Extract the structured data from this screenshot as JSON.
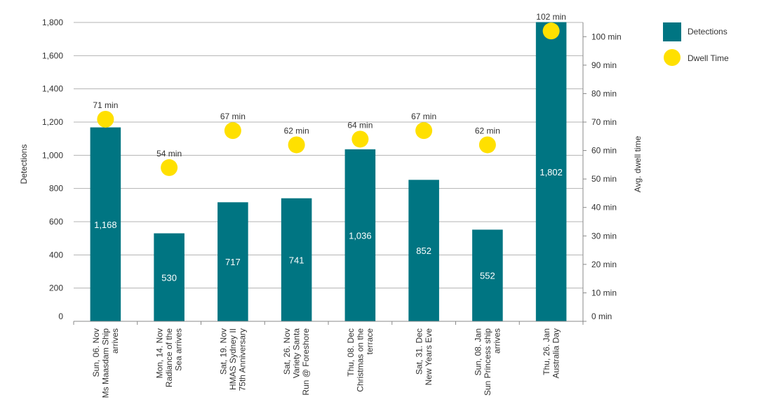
{
  "chart_data": {
    "type": "bar",
    "categories": [
      [
        "Sun, 06. Nov",
        "Ms Maasdam Ship",
        "arrives"
      ],
      [
        "Mon, 14. Nov",
        "Radiance of the",
        "Sea arrives"
      ],
      [
        "Sat, 19. Nov",
        "HMAS Sydney II",
        "75th Anniversary"
      ],
      [
        "Sat, 26. Nov",
        "Variety Santa",
        "Run @ Foreshore"
      ],
      [
        "Thu, 08. Dec",
        "Christmas on the",
        "terrace"
      ],
      [
        "Sat, 31. Dec",
        "New Years Eve"
      ],
      [
        "Sun, 08. Jan",
        "Sun Princess ship",
        "arrives"
      ],
      [
        "Thu, 26. Jan",
        "Australia Day"
      ]
    ],
    "series": [
      {
        "name": "Detections",
        "kind": "bar",
        "axis": "left",
        "color": "#007582",
        "values": [
          1168,
          530,
          717,
          741,
          1036,
          852,
          552,
          1802
        ],
        "labels": [
          "1,168",
          "530",
          "717",
          "741",
          "1,036",
          "852",
          "552",
          "1,802"
        ]
      },
      {
        "name": "Dwell Time",
        "kind": "scatter",
        "axis": "right",
        "color": "#FFE000",
        "values": [
          71,
          54,
          67,
          62,
          64,
          67,
          62,
          102
        ],
        "labels": [
          "71 min",
          "54 min",
          "67 min",
          "62 min",
          "64 min",
          "67 min",
          "62 min",
          "102 min"
        ]
      }
    ],
    "ylabel": "Detections",
    "ylim": [
      0,
      1800
    ],
    "yticks": [
      0,
      200,
      400,
      600,
      800,
      1000,
      1200,
      1400,
      1600,
      1800
    ],
    "ytick_labels": [
      "0",
      "200",
      "400",
      "600",
      "800",
      "1,000",
      "1,200",
      "1,400",
      "1,600",
      "1,800"
    ],
    "y2label": "Avg. dwell time",
    "y2lim": [
      0,
      105
    ],
    "y2ticks": [
      0,
      10,
      20,
      30,
      40,
      50,
      60,
      70,
      80,
      90,
      100
    ],
    "y2tick_labels": [
      "0 min",
      "10 min",
      "20 min",
      "30 min",
      "40 min",
      "50 min",
      "60 min",
      "70 min",
      "80 min",
      "90 min",
      "100 min"
    ],
    "grid": true,
    "legend": "top-right",
    "colors": {
      "gridline": "#b3b3b3",
      "axis": "#888888",
      "text": "#333333",
      "bar_label": "#ffffff"
    }
  }
}
